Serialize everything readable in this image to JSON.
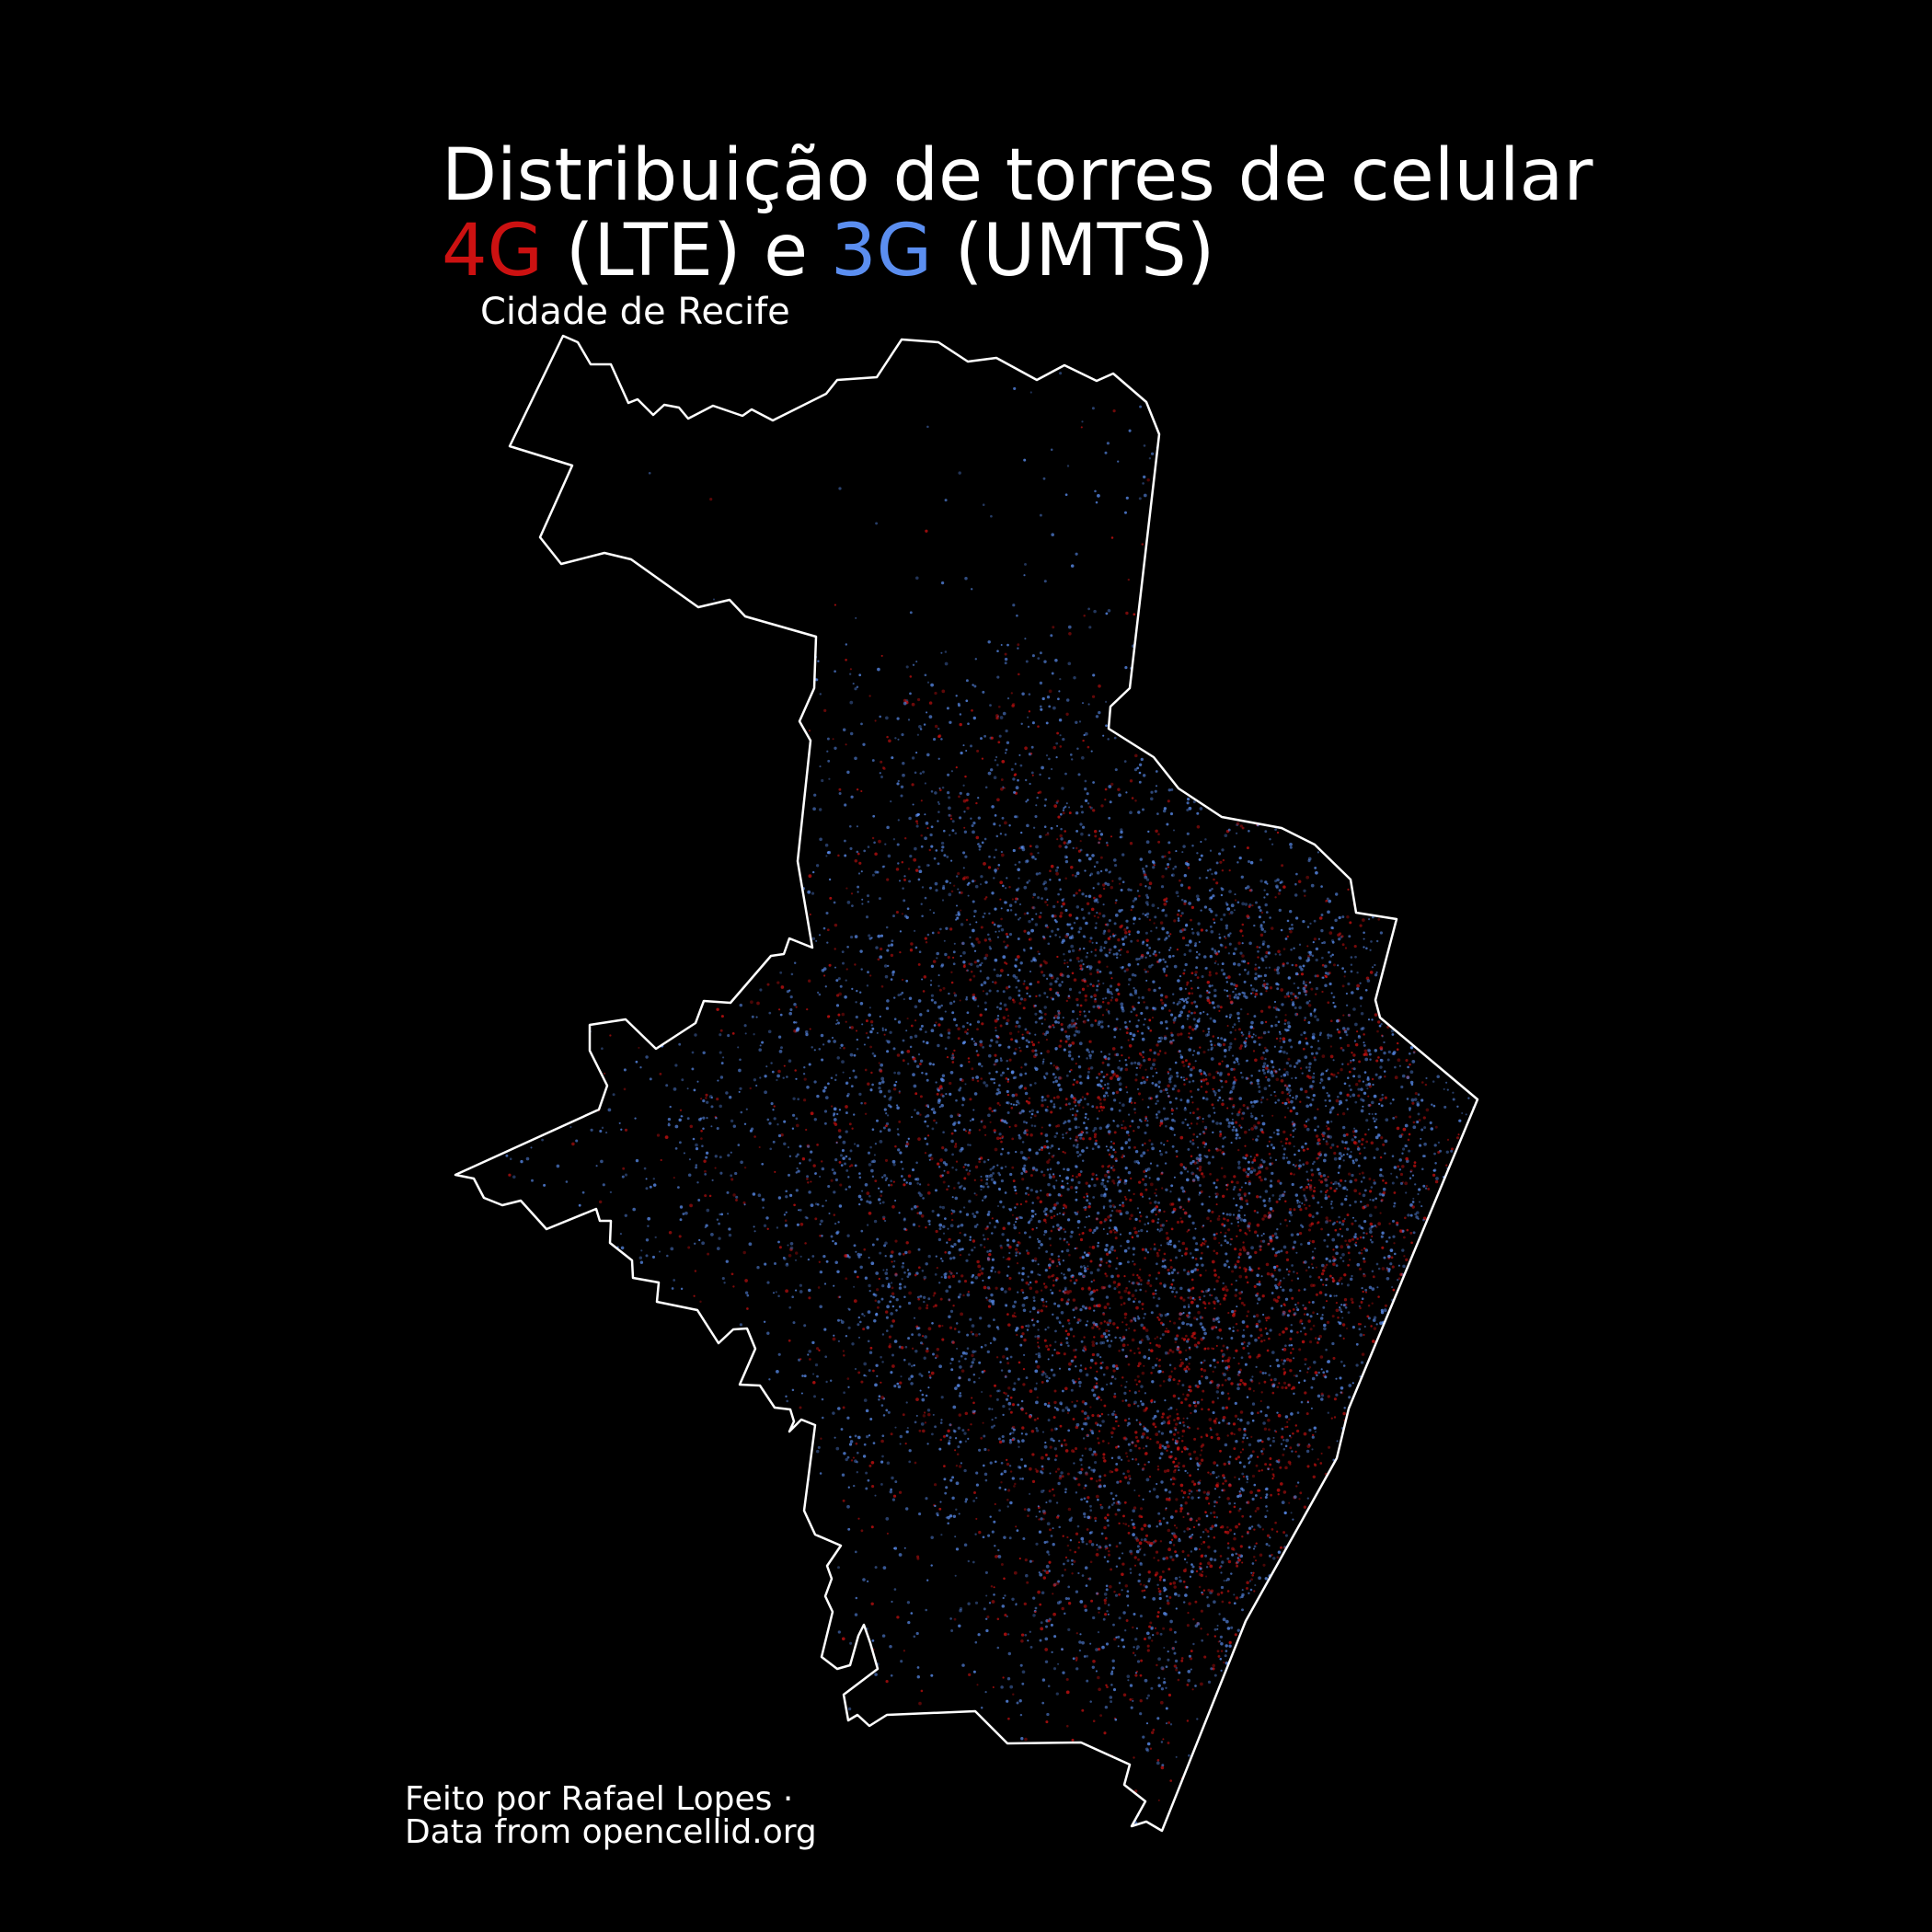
{
  "title": {
    "line1": "Distribuição de torres de celular",
    "lte_label": "4G",
    "lte_desc": " (LTE) e ",
    "umts_label": "3G",
    "umts_desc": " (UMTS)"
  },
  "subtitle": "Cidade de Recife",
  "caption": {
    "line1": "Feito por Rafael Lopes ·",
    "line2": "Data from opencellid.org"
  },
  "colors": {
    "background": "#000000",
    "lte": "#cc1111",
    "umts": "#5b8ef0",
    "boundary": "#ffffff",
    "text": "#ffffff"
  },
  "map": {
    "layers": [
      "city-boundary",
      "lte-towers",
      "umts-towers"
    ]
  }
}
